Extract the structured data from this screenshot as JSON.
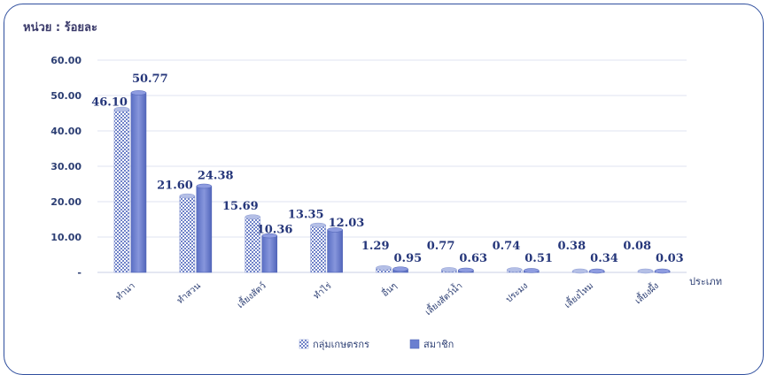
{
  "unit_label": "หน่วย : ร้อยละ",
  "chart_data": {
    "type": "bar",
    "title": "",
    "xlabel": "ประเภท",
    "ylabel": "",
    "ylim": [
      0,
      60
    ],
    "yticks": [
      "-",
      "10.00",
      "20.00",
      "30.00",
      "40.00",
      "50.00",
      "60.00"
    ],
    "grid": true,
    "legend_position": "bottom",
    "categories": [
      "ทำนา",
      "ทำสวน",
      "เลี้ยงสัตว์",
      "ทำไร่",
      "อื่นๆ",
      "เลี้ยงสัตว์น้ำ",
      "ประมง",
      "เลี้ยงไหม",
      "เลี้ยงผึ้ง"
    ],
    "series": [
      {
        "name": "กลุ่มเกษตรกร",
        "values": [
          46.1,
          21.6,
          15.69,
          13.35,
          1.29,
          0.77,
          0.74,
          0.38,
          0.08
        ],
        "labels": [
          "46.10",
          "21.60",
          "15.69",
          "13.35",
          "1.29",
          "0.77",
          "0.74",
          "0.38",
          "0.08"
        ],
        "color": "#8fa0d8",
        "pattern": "checker"
      },
      {
        "name": "สมาชิก",
        "values": [
          50.77,
          24.38,
          10.36,
          12.03,
          0.95,
          0.63,
          0.51,
          0.34,
          0.03
        ],
        "labels": [
          "50.77",
          "24.38",
          "10.36",
          "12.03",
          "0.95",
          "0.63",
          "0.51",
          "0.34",
          "0.03"
        ],
        "color": "#6a7fd0",
        "pattern": "solid"
      }
    ]
  }
}
